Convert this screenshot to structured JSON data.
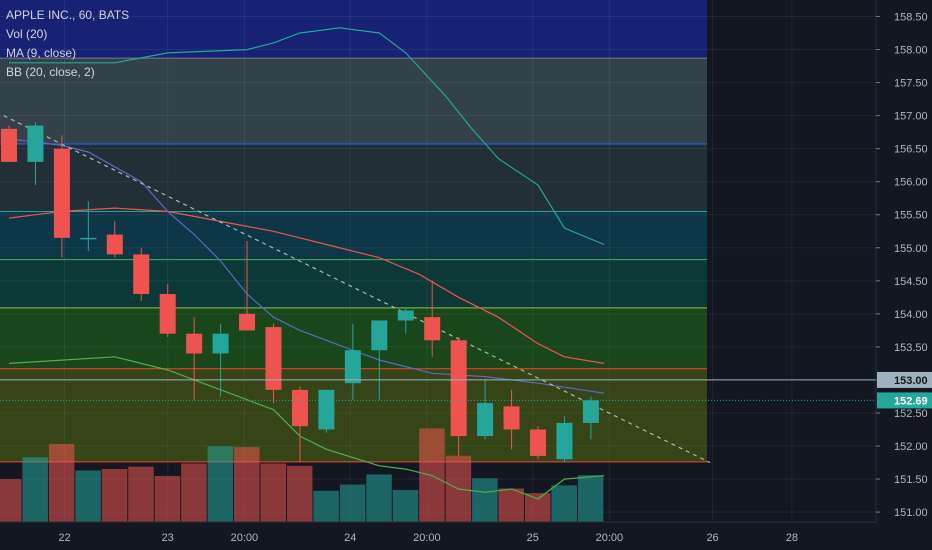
{
  "legend": {
    "symbol": "APPLE INC., 60, BATS",
    "vol": "Vol (20)",
    "ma": "MA (9, close)",
    "bb": "BB (20, close, 2)"
  },
  "chart_data": {
    "type": "candlestick",
    "y_axis": {
      "ylim": [
        150.85,
        158.75
      ],
      "ticks": [
        "158.50",
        "158.00",
        "157.50",
        "157.00",
        "156.50",
        "156.00",
        "155.50",
        "155.00",
        "154.50",
        "154.00",
        "153.50",
        "153.00",
        "152.50",
        "152.00",
        "151.50",
        "151.00"
      ]
    },
    "x_axis": {
      "labels": [
        {
          "text": "22",
          "bar": 2.1
        },
        {
          "text": "23",
          "bar": 6.0
        },
        {
          "text": "20:00",
          "bar": 8.9
        },
        {
          "text": "24",
          "bar": 12.9
        },
        {
          "text": "20:00",
          "bar": 15.8
        },
        {
          "text": "25",
          "bar": 19.8
        },
        {
          "text": "20:00",
          "bar": 22.7
        },
        {
          "text": "26",
          "bar": 26.6
        },
        {
          "text": "28",
          "bar": 29.6
        }
      ]
    },
    "candles": [
      {
        "o": 156.8,
        "h": 156.85,
        "l": 156.3,
        "c": 156.3
      },
      {
        "o": 156.3,
        "h": 156.9,
        "l": 155.95,
        "c": 156.85
      },
      {
        "o": 156.5,
        "h": 156.7,
        "l": 154.85,
        "c": 155.15
      },
      {
        "o": 155.15,
        "h": 155.7,
        "l": 154.95,
        "c": 155.15
      },
      {
        "o": 155.2,
        "h": 155.4,
        "l": 154.85,
        "c": 154.9
      },
      {
        "o": 154.9,
        "h": 155.0,
        "l": 154.2,
        "c": 154.3
      },
      {
        "o": 154.3,
        "h": 154.45,
        "l": 153.65,
        "c": 153.7
      },
      {
        "o": 153.7,
        "h": 153.95,
        "l": 152.7,
        "c": 153.4
      },
      {
        "o": 153.4,
        "h": 153.85,
        "l": 152.75,
        "c": 153.7
      },
      {
        "o": 154.0,
        "h": 155.1,
        "l": 153.75,
        "c": 153.75
      },
      {
        "o": 153.8,
        "h": 153.85,
        "l": 152.65,
        "c": 152.85
      },
      {
        "o": 152.85,
        "h": 152.9,
        "l": 151.75,
        "c": 152.3
      },
      {
        "o": 152.25,
        "h": 152.85,
        "l": 152.2,
        "c": 152.85
      },
      {
        "o": 152.95,
        "h": 153.85,
        "l": 152.7,
        "c": 153.45
      },
      {
        "o": 153.45,
        "h": 153.9,
        "l": 152.7,
        "c": 153.9
      },
      {
        "o": 153.9,
        "h": 154.1,
        "l": 153.7,
        "c": 154.05
      },
      {
        "o": 153.95,
        "h": 154.5,
        "l": 153.35,
        "c": 153.6
      },
      {
        "o": 153.6,
        "h": 153.65,
        "l": 151.85,
        "c": 152.15
      },
      {
        "o": 152.15,
        "h": 153.0,
        "l": 152.1,
        "c": 152.65
      },
      {
        "o": 152.6,
        "h": 152.85,
        "l": 151.95,
        "c": 152.25
      },
      {
        "o": 152.25,
        "h": 152.3,
        "l": 151.8,
        "c": 151.85
      },
      {
        "o": 151.8,
        "h": 152.45,
        "l": 151.75,
        "c": 152.35
      },
      {
        "o": 152.35,
        "h": 152.75,
        "l": 152.1,
        "c": 152.69
      }
    ],
    "volume": [
      {
        "v": 0.55,
        "dir": "down"
      },
      {
        "v": 0.83,
        "dir": "up"
      },
      {
        "v": 1.0,
        "dir": "down"
      },
      {
        "v": 0.66,
        "dir": "up"
      },
      {
        "v": 0.68,
        "dir": "down"
      },
      {
        "v": 0.71,
        "dir": "down"
      },
      {
        "v": 0.59,
        "dir": "down"
      },
      {
        "v": 0.75,
        "dir": "down"
      },
      {
        "v": 0.97,
        "dir": "up"
      },
      {
        "v": 0.96,
        "dir": "down"
      },
      {
        "v": 0.75,
        "dir": "down"
      },
      {
        "v": 0.72,
        "dir": "down"
      },
      {
        "v": 0.4,
        "dir": "up"
      },
      {
        "v": 0.48,
        "dir": "up"
      },
      {
        "v": 0.61,
        "dir": "up"
      },
      {
        "v": 0.41,
        "dir": "up"
      },
      {
        "v": 1.2,
        "dir": "down"
      },
      {
        "v": 0.85,
        "dir": "down"
      },
      {
        "v": 0.56,
        "dir": "up"
      },
      {
        "v": 0.43,
        "dir": "down"
      },
      {
        "v": 0.37,
        "dir": "down"
      },
      {
        "v": 0.47,
        "dir": "up"
      },
      {
        "v": 0.6,
        "dir": "up"
      }
    ],
    "ma": [
      {
        "bar": 0,
        "y": 156.65
      },
      {
        "bar": 2,
        "y": 156.55
      },
      {
        "bar": 3,
        "y": 156.45
      },
      {
        "bar": 5,
        "y": 156.0
      },
      {
        "bar": 6,
        "y": 155.55
      },
      {
        "bar": 7,
        "y": 155.2
      },
      {
        "bar": 8,
        "y": 154.8
      },
      {
        "bar": 9,
        "y": 154.3
      },
      {
        "bar": 10,
        "y": 153.95
      },
      {
        "bar": 11,
        "y": 153.75
      },
      {
        "bar": 12,
        "y": 153.6
      },
      {
        "bar": 13,
        "y": 153.45
      },
      {
        "bar": 14,
        "y": 153.3
      },
      {
        "bar": 16,
        "y": 153.1
      },
      {
        "bar": 18,
        "y": 153.05
      },
      {
        "bar": 20,
        "y": 152.95
      },
      {
        "bar": 22.5,
        "y": 152.8
      }
    ],
    "bb_upper": [
      {
        "bar": 0,
        "y": 157.8
      },
      {
        "bar": 4,
        "y": 157.8
      },
      {
        "bar": 6,
        "y": 157.95
      },
      {
        "bar": 9,
        "y": 158.0
      },
      {
        "bar": 10,
        "y": 158.1
      },
      {
        "bar": 11,
        "y": 158.25
      },
      {
        "bar": 12.5,
        "y": 158.33
      },
      {
        "bar": 14,
        "y": 158.25
      },
      {
        "bar": 15,
        "y": 157.95
      },
      {
        "bar": 16.5,
        "y": 157.3
      },
      {
        "bar": 17.5,
        "y": 156.8
      },
      {
        "bar": 18.5,
        "y": 156.35
      },
      {
        "bar": 20,
        "y": 155.95
      },
      {
        "bar": 21,
        "y": 155.3
      },
      {
        "bar": 22.5,
        "y": 155.05
      }
    ],
    "bb_mid": [
      {
        "bar": 0,
        "y": 155.45
      },
      {
        "bar": 1,
        "y": 155.5
      },
      {
        "bar": 2,
        "y": 155.55
      },
      {
        "bar": 4,
        "y": 155.6
      },
      {
        "bar": 6,
        "y": 155.55
      },
      {
        "bar": 8,
        "y": 155.4
      },
      {
        "bar": 10,
        "y": 155.25
      },
      {
        "bar": 12,
        "y": 155.05
      },
      {
        "bar": 14,
        "y": 154.85
      },
      {
        "bar": 15.5,
        "y": 154.6
      },
      {
        "bar": 17,
        "y": 154.25
      },
      {
        "bar": 18.5,
        "y": 153.95
      },
      {
        "bar": 20,
        "y": 153.55
      },
      {
        "bar": 21,
        "y": 153.35
      },
      {
        "bar": 22.5,
        "y": 153.25
      }
    ],
    "bb_lower": [
      {
        "bar": 0,
        "y": 153.25
      },
      {
        "bar": 2,
        "y": 153.3
      },
      {
        "bar": 4,
        "y": 153.35
      },
      {
        "bar": 6,
        "y": 153.15
      },
      {
        "bar": 8,
        "y": 152.85
      },
      {
        "bar": 10,
        "y": 152.55
      },
      {
        "bar": 11,
        "y": 152.15
      },
      {
        "bar": 12,
        "y": 151.95
      },
      {
        "bar": 14,
        "y": 151.7
      },
      {
        "bar": 15,
        "y": 151.65
      },
      {
        "bar": 16,
        "y": 151.55
      },
      {
        "bar": 17,
        "y": 151.35
      },
      {
        "bar": 18,
        "y": 151.3
      },
      {
        "bar": 19,
        "y": 151.35
      },
      {
        "bar": 20,
        "y": 151.2
      },
      {
        "bar": 21,
        "y": 151.5
      },
      {
        "bar": 22.5,
        "y": 151.55
      }
    ],
    "fib_levels": [
      158.75,
      157.87,
      156.57,
      155.55,
      154.82,
      154.09,
      153.17,
      151.76
    ],
    "fib_fills": [
      "#1a237e",
      "#37474f",
      "#263238",
      "#0d3b4a",
      "#0c3d3a",
      "#1b4d1b",
      "#3a4a16",
      "#4a1a24"
    ],
    "fib_colors": [
      "#787b86",
      "#787b86",
      "#2962ff",
      "#26a69a",
      "#4caf50",
      "#8bc34a",
      "#f44336",
      "#f44336"
    ],
    "trend_line": {
      "from": {
        "bar": -0.2,
        "y": 157.0
      },
      "to": {
        "bar": 26.5,
        "y": 151.75
      }
    },
    "current_price": "152.69",
    "marker_price": "153.00",
    "colors": {
      "up": "#26a69a",
      "down": "#ef5350"
    }
  }
}
